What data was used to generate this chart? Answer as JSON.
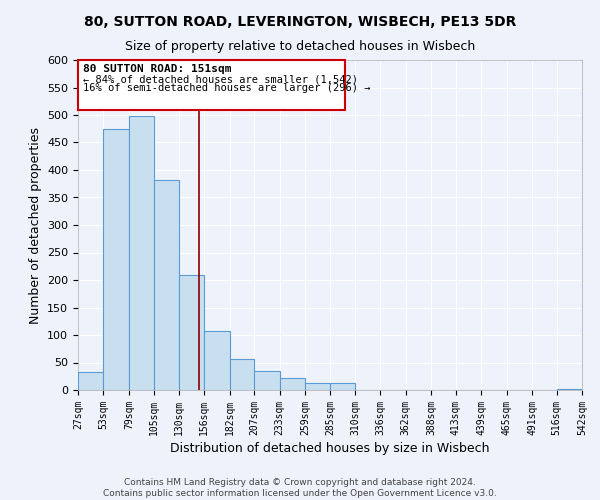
{
  "title": "80, SUTTON ROAD, LEVERINGTON, WISBECH, PE13 5DR",
  "subtitle": "Size of property relative to detached houses in Wisbech",
  "xlabel": "Distribution of detached houses by size in Wisbech",
  "ylabel": "Number of detached properties",
  "bin_labels": [
    "27sqm",
    "53sqm",
    "79sqm",
    "105sqm",
    "130sqm",
    "156sqm",
    "182sqm",
    "207sqm",
    "233sqm",
    "259sqm",
    "285sqm",
    "310sqm",
    "336sqm",
    "362sqm",
    "388sqm",
    "413sqm",
    "439sqm",
    "465sqm",
    "491sqm",
    "516sqm",
    "542sqm"
  ],
  "bar_heights": [
    32,
    475,
    498,
    382,
    210,
    107,
    57,
    35,
    21,
    12,
    12,
    0,
    0,
    0,
    0,
    0,
    0,
    0,
    0,
    2
  ],
  "bin_edges": [
    27,
    53,
    79,
    105,
    130,
    156,
    182,
    207,
    233,
    259,
    285,
    310,
    336,
    362,
    388,
    413,
    439,
    465,
    491,
    516,
    542
  ],
  "bar_color": "#c8dff0",
  "bar_edge_color": "#5b9bd5",
  "vline_x": 151,
  "vline_color": "#8b0000",
  "annotation_title": "80 SUTTON ROAD: 151sqm",
  "annotation_line1": "← 84% of detached houses are smaller (1,542)",
  "annotation_line2": "16% of semi-detached houses are larger (296) →",
  "annotation_box_facecolor": "#ffffff",
  "annotation_box_edgecolor": "#cc0000",
  "ylim": [
    0,
    600
  ],
  "yticks": [
    0,
    50,
    100,
    150,
    200,
    250,
    300,
    350,
    400,
    450,
    500,
    550,
    600
  ],
  "footer_line1": "Contains HM Land Registry data © Crown copyright and database right 2024.",
  "footer_line2": "Contains public sector information licensed under the Open Government Licence v3.0.",
  "bg_color": "#eef2fa",
  "plot_bg_color": "#eef2fa",
  "grid_color": "#ffffff"
}
